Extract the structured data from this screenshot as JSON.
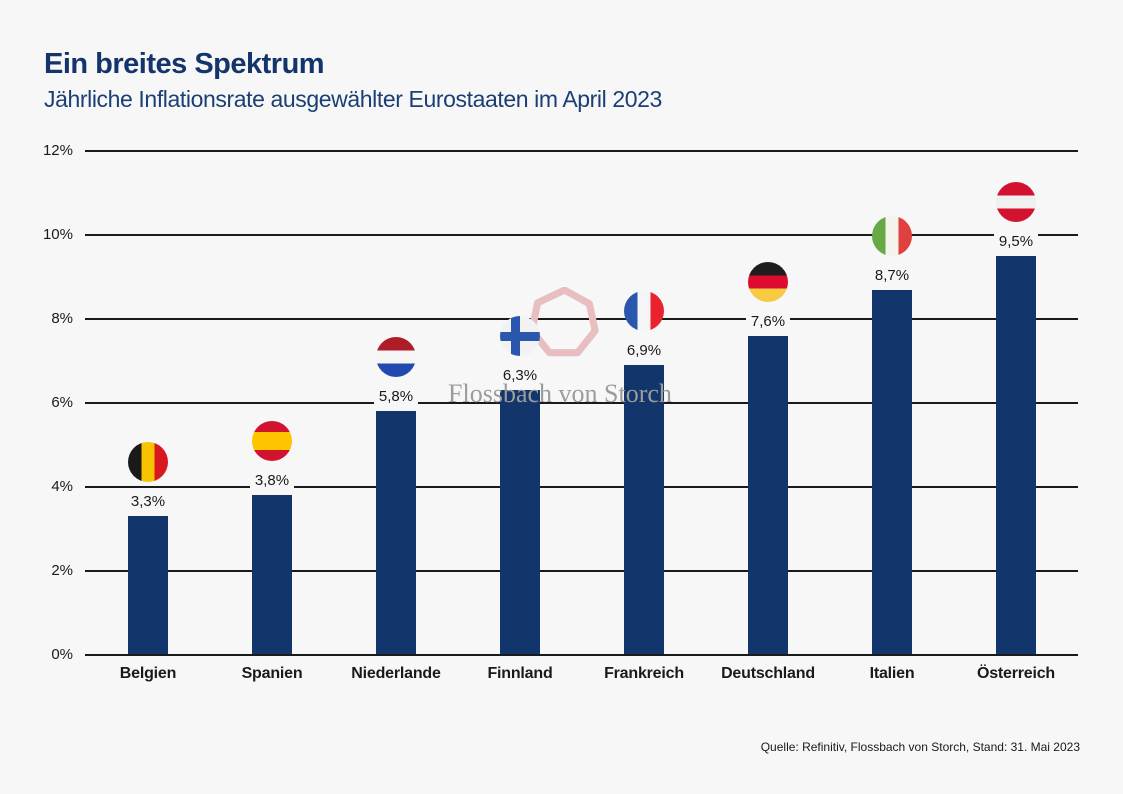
{
  "header": {
    "title": "Ein breites Spektrum",
    "subtitle": "Jährliche Inflationsrate ausgewählter Eurostaaten im April 2023"
  },
  "watermark": {
    "text": "Flossbach von Storch",
    "logo": "heptagon-logo-icon",
    "logo_color": "#e8bec0",
    "text_color": "#9c9c9c"
  },
  "source": "Quelle: Refinitiv, Flossbach von Storch, Stand: 31. Mai 2023",
  "colors": {
    "background": "#f7f7f7",
    "bar": "#12366b",
    "title_blue": "#14356b",
    "gridline": "#1a1a1a"
  },
  "chart_data": {
    "type": "bar",
    "title": "Ein breites Spektrum",
    "subtitle": "Jährliche Inflationsrate ausgewählter Eurostaaten im April 2023",
    "categories": [
      "Belgien",
      "Spanien",
      "Niederlande",
      "Finnland",
      "Frankreich",
      "Deutschland",
      "Italien",
      "Österreich"
    ],
    "values": [
      3.3,
      3.8,
      5.8,
      6.3,
      6.9,
      7.6,
      8.7,
      9.5
    ],
    "value_labels": [
      "3,3%",
      "3,8%",
      "5,8%",
      "6,3%",
      "6,9%",
      "7,6%",
      "8,7%",
      "9,5%"
    ],
    "xlabel": "",
    "ylabel": "",
    "ylim": [
      0,
      12
    ],
    "yticks": [
      "0%",
      "2%",
      "4%",
      "6%",
      "8%",
      "10%",
      "12%"
    ],
    "grid": true,
    "legend": false,
    "bar_color": "#12366b",
    "flags": [
      {
        "name": "belgien-flag-icon",
        "type": "vertical",
        "colors": [
          "#1a1a1a",
          "#f6c500",
          "#d8171f"
        ]
      },
      {
        "name": "spanien-flag-icon",
        "type": "spain",
        "colors": [
          "#d2122e",
          "#ffc400",
          "#d2122e"
        ]
      },
      {
        "name": "niederlande-flag-icon",
        "type": "horizontal",
        "colors": [
          "#ae1c28",
          "#f5f5f5",
          "#2149b0"
        ]
      },
      {
        "name": "finnland-flag-icon",
        "type": "nordic-cross",
        "bg": "#f2f2f2",
        "cross": "#2b56ad"
      },
      {
        "name": "frankreich-flag-icon",
        "type": "vertical",
        "colors": [
          "#2b56ad",
          "#f5f5f5",
          "#e8232f"
        ]
      },
      {
        "name": "deutschland-flag-icon",
        "type": "horizontal",
        "colors": [
          "#1d1d1b",
          "#dd0b2f",
          "#f8c943"
        ]
      },
      {
        "name": "italien-flag-icon",
        "type": "vertical",
        "colors": [
          "#67a945",
          "#f3f4ec",
          "#e0403e"
        ]
      },
      {
        "name": "oesterreich-flag-icon",
        "type": "horizontal",
        "colors": [
          "#d2122e",
          "#f0f0f0",
          "#d2122e"
        ]
      }
    ]
  }
}
